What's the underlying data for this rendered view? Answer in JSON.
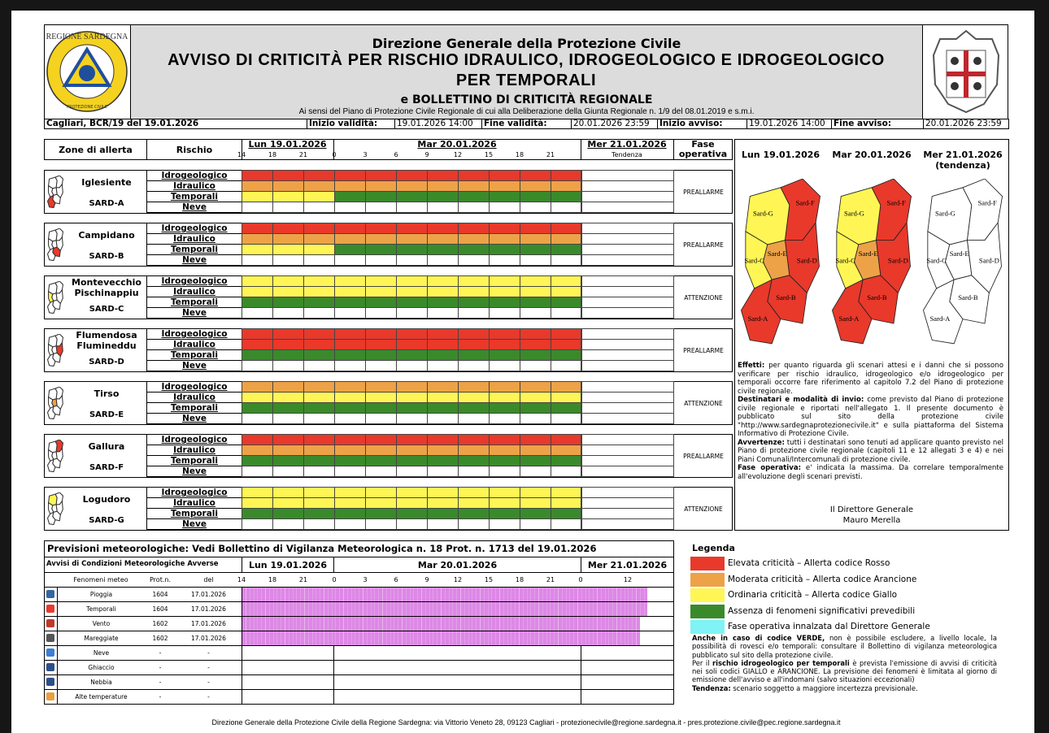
{
  "header": {
    "logo_left": [
      "REGIONE SARDEGNA",
      "PROTEZIONE CIVILE"
    ],
    "title": "Direzione Generale della Protezione Civile",
    "headline": "AVVISO DI CRITICITÀ PER RISCHIO IDRAULICO, IDROGEOLOGICO E IDROGEOLOGICO PER TEMPORALI",
    "subtitle": "e BOLLETTINO DI CRITICITÀ REGIONALE",
    "reference": "Ai sensi del Piano di Protezione Civile Regionale di cui alla Deliberazione della Giunta Regionale n. 1/9 del 08.01.2019 e s.m.i."
  },
  "info": [
    {
      "text": "Cagliari, BCR/19 del 19.01.2026",
      "bold": true
    },
    {
      "text": "Inizio validità:",
      "bold": true
    },
    {
      "text": "19.01.2026 14:00"
    },
    {
      "text": "Fine validità:",
      "bold": true
    },
    {
      "text": "20.01.2026 23:59"
    },
    {
      "text": "Inizio avviso:",
      "bold": true
    },
    {
      "text": "19.01.2026 14:00"
    },
    {
      "text": "Fine avviso:",
      "bold": true
    },
    {
      "text": "20.01.2026 23:59"
    }
  ],
  "zones_table": {
    "zone_header": "Zone di allerta",
    "risk_header": "Rischio",
    "phase_header": "Fase operativa",
    "days": [
      "Lun 19.01.2026",
      "Mar 20.01.2026",
      "Mer 21.01.2026"
    ],
    "hours": [
      14,
      18,
      21,
      0,
      3,
      6,
      9,
      12,
      15,
      18,
      21
    ],
    "trend": "Tendenza",
    "zones": [
      {
        "name": "Iglesiente",
        "code": "SARD-A",
        "phase": "PREALLARME",
        "risks": [
          {
            "name": "Idrogeologico",
            "cells": [
              "#e8392b",
              "#e8392b",
              "#e8392b",
              "#e8392b",
              "#e8392b",
              "#e8392b",
              "#e8392b",
              "#e8392b",
              "#e8392b",
              "#e8392b",
              "#e8392b"
            ]
          },
          {
            "name": "Idraulico",
            "cells": [
              "#eda248",
              "#eda248",
              "#eda248",
              "#eda248",
              "#eda248",
              "#eda248",
              "#eda248",
              "#eda248",
              "#eda248",
              "#eda248",
              "#eda248"
            ]
          },
          {
            "name": "Temporali",
            "cells": [
              "#fff655",
              "#fff655",
              "#fff655",
              "#3a8a2b",
              "#3a8a2b",
              "#3a8a2b",
              "#3a8a2b",
              "#3a8a2b",
              "#3a8a2b",
              "#3a8a2b",
              "#3a8a2b"
            ]
          },
          {
            "name": "Neve",
            "cells": [
              null,
              null,
              null,
              null,
              null,
              null,
              null,
              null,
              null,
              null,
              null
            ]
          }
        ]
      },
      {
        "name": "Campidano",
        "code": "SARD-B",
        "phase": "PREALLARME",
        "risks": [
          {
            "name": "Idrogeologico",
            "cells": [
              "#e8392b",
              "#e8392b",
              "#e8392b",
              "#e8392b",
              "#e8392b",
              "#e8392b",
              "#e8392b",
              "#e8392b",
              "#e8392b",
              "#e8392b",
              "#e8392b"
            ]
          },
          {
            "name": "Idraulico",
            "cells": [
              "#eda248",
              "#eda248",
              "#eda248",
              "#eda248",
              "#eda248",
              "#eda248",
              "#eda248",
              "#eda248",
              "#eda248",
              "#eda248",
              "#eda248"
            ]
          },
          {
            "name": "Temporali",
            "cells": [
              "#fff655",
              "#fff655",
              "#fff655",
              "#3a8a2b",
              "#3a8a2b",
              "#3a8a2b",
              "#3a8a2b",
              "#3a8a2b",
              "#3a8a2b",
              "#3a8a2b",
              "#3a8a2b"
            ]
          },
          {
            "name": "Neve",
            "cells": [
              null,
              null,
              null,
              null,
              null,
              null,
              null,
              null,
              null,
              null,
              null
            ]
          }
        ]
      },
      {
        "name": "Montevecchio Pischinappiu",
        "code": "SARD-C",
        "phase": "ATTENZIONE",
        "risks": [
          {
            "name": "Idrogeologico",
            "cells": [
              "#fff655",
              "#fff655",
              "#fff655",
              "#fff655",
              "#fff655",
              "#fff655",
              "#fff655",
              "#fff655",
              "#fff655",
              "#fff655",
              "#fff655"
            ]
          },
          {
            "name": "Idraulico",
            "cells": [
              "#fff655",
              "#fff655",
              "#fff655",
              "#fff655",
              "#fff655",
              "#fff655",
              "#fff655",
              "#fff655",
              "#fff655",
              "#fff655",
              "#fff655"
            ]
          },
          {
            "name": "Temporali",
            "cells": [
              "#3a8a2b",
              "#3a8a2b",
              "#3a8a2b",
              "#3a8a2b",
              "#3a8a2b",
              "#3a8a2b",
              "#3a8a2b",
              "#3a8a2b",
              "#3a8a2b",
              "#3a8a2b",
              "#3a8a2b"
            ]
          },
          {
            "name": "Neve",
            "cells": [
              null,
              null,
              null,
              null,
              null,
              null,
              null,
              null,
              null,
              null,
              null
            ]
          }
        ]
      },
      {
        "name": "Flumendosa Flumineddu",
        "code": "SARD-D",
        "phase": "PREALLARME",
        "risks": [
          {
            "name": "Idrogeologico",
            "cells": [
              "#e8392b",
              "#e8392b",
              "#e8392b",
              "#e8392b",
              "#e8392b",
              "#e8392b",
              "#e8392b",
              "#e8392b",
              "#e8392b",
              "#e8392b",
              "#e8392b"
            ]
          },
          {
            "name": "Idraulico",
            "cells": [
              "#e8392b",
              "#e8392b",
              "#e8392b",
              "#e8392b",
              "#e8392b",
              "#e8392b",
              "#e8392b",
              "#e8392b",
              "#e8392b",
              "#e8392b",
              "#e8392b"
            ]
          },
          {
            "name": "Temporali",
            "cells": [
              "#3a8a2b",
              "#3a8a2b",
              "#3a8a2b",
              "#3a8a2b",
              "#3a8a2b",
              "#3a8a2b",
              "#3a8a2b",
              "#3a8a2b",
              "#3a8a2b",
              "#3a8a2b",
              "#3a8a2b"
            ]
          },
          {
            "name": "Neve",
            "cells": [
              null,
              null,
              null,
              null,
              null,
              null,
              null,
              null,
              null,
              null,
              null
            ]
          }
        ]
      },
      {
        "name": "Tirso",
        "code": "SARD-E",
        "phase": "ATTENZIONE",
        "risks": [
          {
            "name": "Idrogeologico",
            "cells": [
              "#eda248",
              "#eda248",
              "#eda248",
              "#eda248",
              "#eda248",
              "#eda248",
              "#eda248",
              "#eda248",
              "#eda248",
              "#eda248",
              "#eda248"
            ]
          },
          {
            "name": "Idraulico",
            "cells": [
              "#fff655",
              "#fff655",
              "#fff655",
              "#fff655",
              "#fff655",
              "#fff655",
              "#fff655",
              "#fff655",
              "#fff655",
              "#fff655",
              "#fff655"
            ]
          },
          {
            "name": "Temporali",
            "cells": [
              "#3a8a2b",
              "#3a8a2b",
              "#3a8a2b",
              "#3a8a2b",
              "#3a8a2b",
              "#3a8a2b",
              "#3a8a2b",
              "#3a8a2b",
              "#3a8a2b",
              "#3a8a2b",
              "#3a8a2b"
            ]
          },
          {
            "name": "Neve",
            "cells": [
              null,
              null,
              null,
              null,
              null,
              null,
              null,
              null,
              null,
              null,
              null
            ]
          }
        ]
      },
      {
        "name": "Gallura",
        "code": "SARD-F",
        "phase": "PREALLARME",
        "risks": [
          {
            "name": "Idrogeologico",
            "cells": [
              "#e8392b",
              "#e8392b",
              "#e8392b",
              "#e8392b",
              "#e8392b",
              "#e8392b",
              "#e8392b",
              "#e8392b",
              "#e8392b",
              "#e8392b",
              "#e8392b"
            ]
          },
          {
            "name": "Idraulico",
            "cells": [
              "#eda248",
              "#eda248",
              "#eda248",
              "#eda248",
              "#eda248",
              "#eda248",
              "#eda248",
              "#eda248",
              "#eda248",
              "#eda248",
              "#eda248"
            ]
          },
          {
            "name": "Temporali",
            "cells": [
              "#3a8a2b",
              "#3a8a2b",
              "#3a8a2b",
              "#3a8a2b",
              "#3a8a2b",
              "#3a8a2b",
              "#3a8a2b",
              "#3a8a2b",
              "#3a8a2b",
              "#3a8a2b",
              "#3a8a2b"
            ]
          },
          {
            "name": "Neve",
            "cells": [
              null,
              null,
              null,
              null,
              null,
              null,
              null,
              null,
              null,
              null,
              null
            ]
          }
        ]
      },
      {
        "name": "Logudoro",
        "code": "SARD-G",
        "phase": "ATTENZIONE",
        "risks": [
          {
            "name": "Idrogeologico",
            "cells": [
              "#fff655",
              "#fff655",
              "#fff655",
              "#fff655",
              "#fff655",
              "#fff655",
              "#fff655",
              "#fff655",
              "#fff655",
              "#fff655",
              "#fff655"
            ]
          },
          {
            "name": "Idraulico",
            "cells": [
              "#fff655",
              "#fff655",
              "#fff655",
              "#fff655",
              "#fff655",
              "#fff655",
              "#fff655",
              "#fff655",
              "#fff655",
              "#fff655",
              "#fff655"
            ]
          },
          {
            "name": "Temporali",
            "cells": [
              "#3a8a2b",
              "#3a8a2b",
              "#3a8a2b",
              "#3a8a2b",
              "#3a8a2b",
              "#3a8a2b",
              "#3a8a2b",
              "#3a8a2b",
              "#3a8a2b",
              "#3a8a2b",
              "#3a8a2b"
            ]
          },
          {
            "name": "Neve",
            "cells": [
              null,
              null,
              null,
              null,
              null,
              null,
              null,
              null,
              null,
              null,
              null
            ]
          }
        ]
      }
    ]
  },
  "maps": [
    {
      "day": "Lun 19.01.2026",
      "regions": [
        {
          "label": "Sard-A",
          "color": "#e8392b"
        },
        {
          "label": "Sard-B",
          "color": "#e8392b"
        },
        {
          "label": "Sard-C",
          "color": "#fff655"
        },
        {
          "label": "Sard-D",
          "color": "#e8392b"
        },
        {
          "label": "Sard-E",
          "color": "#eda248"
        },
        {
          "label": "Sard-F",
          "color": "#e8392b"
        },
        {
          "label": "Sard-G",
          "color": "#fff655"
        }
      ]
    },
    {
      "day": "Mar 20.01.2026",
      "regions": [
        {
          "label": "Sard-A",
          "color": "#e8392b"
        },
        {
          "label": "Sard-B",
          "color": "#e8392b"
        },
        {
          "label": "Sard-C",
          "color": "#fff655"
        },
        {
          "label": "Sard-D",
          "color": "#e8392b"
        },
        {
          "label": "Sard-E",
          "color": "#eda248"
        },
        {
          "label": "Sard-F",
          "color": "#e8392b"
        },
        {
          "label": "Sard-G",
          "color": "#fff655"
        }
      ]
    },
    {
      "day": "Mer 21.01.2026",
      "note": "(tendenza)",
      "regions": [
        {
          "label": "Sard-A",
          "color": "#ffffff"
        },
        {
          "label": "Sard-B",
          "color": "#ffffff"
        },
        {
          "label": "Sard-C",
          "color": "#ffffff"
        },
        {
          "label": "Sard-D",
          "color": "#ffffff"
        },
        {
          "label": "Sard-E",
          "color": "#ffffff"
        },
        {
          "label": "Sard-F",
          "color": "#ffffff"
        },
        {
          "label": "Sard-G",
          "color": "#ffffff"
        }
      ]
    }
  ],
  "notes": [
    [
      {
        "text": "Effetti:",
        "bold": true
      },
      {
        "text": " per quanto riguarda gli scenari attesi e i danni che si possono verificare per rischio idraulico, idrogeologico e/o idrogeologico per temporali occorre fare riferimento al capitolo 7.2 del Piano di protezione civile regionale."
      }
    ],
    [
      {
        "text": "Destinatari e modalità di invio:",
        "bold": true
      },
      {
        "text": " come previsto dal Piano di protezione civile regionale e riportati nell'allegato 1. Il presente documento è pubblicato sul sito della protezione civile \"http://www.sardegnaprotezionecivile.it\" e sulla piattaforma del Sistema Informativo di Protezione Civile."
      }
    ],
    [
      {
        "text": "Avvertenze:",
        "bold": true
      },
      {
        "text": " tutti i destinatari sono tenuti ad applicare quanto previsto nel Piano di protezione civile regionale (capitoli 11 e 12 allegati 3 e 4) e nei Piani Comunali/Intercomunali di protezione civile."
      }
    ],
    [
      {
        "text": "Fase operativa:",
        "bold": true
      },
      {
        "text": " e' indicata la massima. Da correlare temporalmente all'evoluzione degli scenari previsti."
      }
    ]
  ],
  "signature": [
    "Il Direttore Generale",
    "Mauro Merella"
  ],
  "meteo": {
    "title": "Previsioni meteorologiche: Vedi Bollettino di Vigilanza Meteorologica n. 18 Prot. n. 1713 del 19.01.2026",
    "subtitle": "Avvisi di Condizioni Meteorologiche Avverse",
    "days": [
      "Lun 19.01.2026",
      "Mar 20.01.2026",
      "Mer 21.01.2026"
    ],
    "columns": [
      "Fenomeni meteo",
      "Prot.n.",
      "del"
    ],
    "hours": [
      14,
      18,
      21,
      0,
      3,
      6,
      9,
      12,
      15,
      18,
      21,
      0,
      12
    ],
    "bar_color": "#dd88e6",
    "rows": [
      {
        "name": "Pioggia",
        "prot": "1604",
        "date": "17.01.2026",
        "until": 51,
        "icon": "#3465a4"
      },
      {
        "name": "Temporali",
        "prot": "1604",
        "date": "17.01.2026",
        "until": 51,
        "icon": "#e8392b"
      },
      {
        "name": "Vento",
        "prot": "1602",
        "date": "17.01.2026",
        "until": 49,
        "icon": "#c0392b"
      },
      {
        "name": "Mareggiate",
        "prot": "1602",
        "date": "17.01.2026",
        "until": 49,
        "icon": "#555555"
      },
      {
        "name": "Neve",
        "prot": "-",
        "date": "-",
        "until": null,
        "icon": "#3b7dd8"
      },
      {
        "name": "Ghiaccio",
        "prot": "-",
        "date": "-",
        "until": null,
        "icon": "#2c4f8a"
      },
      {
        "name": "Nebbia",
        "prot": "-",
        "date": "-",
        "until": null,
        "icon": "#2c4f8a"
      },
      {
        "name": "Alte temperature",
        "prot": "-",
        "date": "-",
        "until": null,
        "icon": "#e8a040"
      }
    ]
  },
  "legend": {
    "title": "Legenda",
    "items": [
      {
        "label": "Elevata criticità – Allerta codice Rosso",
        "color": "#e8392b"
      },
      {
        "label": "Moderata criticità – Allerta codice Arancione",
        "color": "#eda248"
      },
      {
        "label": "Ordinaria criticità – Allerta codice Giallo",
        "color": "#fff655"
      },
      {
        "label": "Assenza di fenomeni significativi prevedibili",
        "color": "#3a8a2b"
      },
      {
        "label": "Fase operativa innalzata dal Direttore Generale",
        "color": "#7ff3f5"
      }
    ],
    "notes": [
      [
        {
          "text": "Anche in caso di codice VERDE,",
          "bold": true
        },
        {
          "text": " non è possibile escludere, a livello locale, la possibilità di rovesci e/o temporali: consultare il Bollettino di vigilanza meteorologica pubblicato sul sito della protezione civile."
        }
      ],
      [
        {
          "text": "Per il "
        },
        {
          "text": "rischio idrogeologico per temporali",
          "bold": true
        },
        {
          "text": " è prevista l'emissione di avvisi di criticità nei soli codici GIALLO e ARANCIONE. La previsione dei fenomeni è limitata al giorno di emissione dell'avviso e all'indomani (salvo situazioni eccezionali)"
        }
      ],
      [
        {
          "text": "Tendenza:",
          "bold": true
        },
        {
          "text": " scenario soggetto a maggiore incertezza previsionale."
        }
      ]
    ]
  },
  "footer": "Direzione Generale della Protezione Civile della Regione Sardegna: via Vittorio Veneto 28, 09123 Cagliari - protezionecivile@regione.sardegna.it - pres.protezione.civile@pec.regione.sardegna.it"
}
